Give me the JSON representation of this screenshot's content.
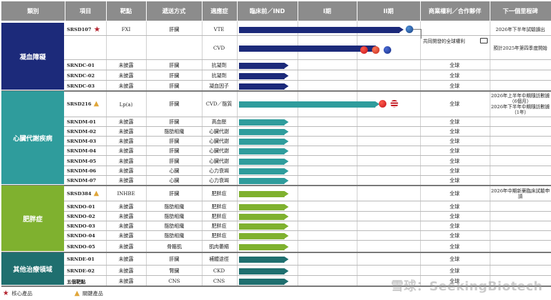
{
  "headers": [
    "類別",
    "項目",
    "靶點",
    "遞送方式",
    "適應症",
    "臨床前／IND",
    "I期",
    "II期",
    "商業權利／合作夥伴",
    "下一個里程碑"
  ],
  "categories": [
    {
      "name": "凝血障礙",
      "color": "#1c2a7a"
    },
    {
      "name": "心臟代謝疾病",
      "color": "#2f9c9c"
    },
    {
      "name": "肥胖症",
      "color": "#7fb12f"
    },
    {
      "name": "其他治療領域",
      "color": "#1f6f6f"
    }
  ],
  "rows": [
    {
      "project": "SRSD107",
      "badge": "star",
      "target": "FXI",
      "route": "肝臟",
      "indication": "VTE",
      "stage": "phase2",
      "color": "#1c2a7a",
      "comm": "",
      "milestone": "2026年下半年試驗讀出"
    },
    {
      "project": "",
      "badge": "",
      "target": "",
      "route": "",
      "indication": "CVD",
      "stage": "phase1_5",
      "color": "#1c2a7a",
      "comm": "",
      "milestone": "預計2025年第四季度開始"
    },
    {
      "project": "SRNDC-01",
      "badge": "",
      "target": "未披露",
      "route": "肝臟",
      "indication": "抗凝劑",
      "stage": "preclinical",
      "color": "#1c2a7a",
      "comm": "全球",
      "milestone": ""
    },
    {
      "project": "SRNDC-02",
      "badge": "",
      "target": "未披露",
      "route": "肝臟",
      "indication": "抗凝劑",
      "stage": "preclinical",
      "color": "#1c2a7a",
      "comm": "全球",
      "milestone": ""
    },
    {
      "project": "SRNDC-03",
      "badge": "",
      "target": "未披露",
      "route": "肝臟",
      "indication": "凝血因子",
      "stage": "preclinical",
      "color": "#1c2a7a",
      "comm": "全球",
      "milestone": ""
    },
    {
      "project": "SRSD216",
      "badge": "triangle",
      "target": "Lp(a)",
      "route": "肝臟",
      "indication": "CVD／脂質",
      "stage": "phase1_5",
      "color": "#2f9c9c",
      "comm": "全球",
      "milestone": "2026年上半年中期隨訪數據（6個月）\n2026年下半年中期隨訪數據（1年）"
    },
    {
      "project": "SRNDM-01",
      "badge": "",
      "target": "未披露",
      "route": "肝臟",
      "indication": "高血壓",
      "stage": "preclinical",
      "color": "#2f9c9c",
      "comm": "全球",
      "milestone": ""
    },
    {
      "project": "SRNDM-02",
      "badge": "",
      "target": "未披露",
      "route": "脂肪組織",
      "indication": "心臟代謝",
      "stage": "preclinical",
      "color": "#2f9c9c",
      "comm": "全球",
      "milestone": ""
    },
    {
      "project": "SRNDM-03",
      "badge": "",
      "target": "未披露",
      "route": "肝臟",
      "indication": "心臟代謝",
      "stage": "preclinical",
      "color": "#2f9c9c",
      "comm": "全球",
      "milestone": ""
    },
    {
      "project": "SRNDM-04",
      "badge": "",
      "target": "未披露",
      "route": "肝臟",
      "indication": "心臟代謝",
      "stage": "preclinical",
      "color": "#2f9c9c",
      "comm": "全球",
      "milestone": ""
    },
    {
      "project": "SRNDM-05",
      "badge": "",
      "target": "未披露",
      "route": "肝臟",
      "indication": "心臟代謝",
      "stage": "preclinical",
      "color": "#2f9c9c",
      "comm": "全球",
      "milestone": ""
    },
    {
      "project": "SRNDM-06",
      "badge": "",
      "target": "未披露",
      "route": "心臟",
      "indication": "心力衰竭",
      "stage": "preclinical",
      "color": "#2f9c9c",
      "comm": "全球",
      "milestone": ""
    },
    {
      "project": "SRNDM-07",
      "badge": "",
      "target": "未披露",
      "route": "心臟",
      "indication": "心力衰竭",
      "stage": "preclinical",
      "color": "#2f9c9c",
      "comm": "全球",
      "milestone": ""
    },
    {
      "project": "SRSD384",
      "badge": "triangle",
      "target": "INHBE",
      "route": "肝臟",
      "indication": "肥胖症",
      "stage": "preclinical",
      "color": "#7fb12f",
      "comm": "全球",
      "milestone": "2026年中期新藥臨床試驗申請"
    },
    {
      "project": "SRNDO-01",
      "badge": "",
      "target": "未披露",
      "route": "脂肪組織",
      "indication": "肥胖症",
      "stage": "preclinical",
      "color": "#7fb12f",
      "comm": "全球",
      "milestone": ""
    },
    {
      "project": "SRNDO-02",
      "badge": "",
      "target": "未披露",
      "route": "脂肪組織",
      "indication": "肥胖症",
      "stage": "preclinical",
      "color": "#7fb12f",
      "comm": "全球",
      "milestone": ""
    },
    {
      "project": "SRNDO-03",
      "badge": "",
      "target": "未披露",
      "route": "脂肪組織",
      "indication": "肥胖症",
      "stage": "preclinical",
      "color": "#7fb12f",
      "comm": "全球",
      "milestone": ""
    },
    {
      "project": "SRNDO-04",
      "badge": "",
      "target": "未披露",
      "route": "脂肪組織",
      "indication": "肥胖症",
      "stage": "preclinical",
      "color": "#7fb12f",
      "comm": "全球",
      "milestone": ""
    },
    {
      "project": "SRNDO-05",
      "badge": "",
      "target": "未披露",
      "route": "骨骼肌",
      "indication": "肌肉萎縮",
      "stage": "preclinical",
      "color": "#7fb12f",
      "comm": "全球",
      "milestone": ""
    },
    {
      "project": "SRNDE-01",
      "badge": "",
      "target": "未披露",
      "route": "肝臟",
      "indication": "補體途徑",
      "stage": "preclinical",
      "color": "#1f6f6f",
      "comm": "全球",
      "milestone": ""
    },
    {
      "project": "SRNDE-02",
      "badge": "",
      "target": "未披露",
      "route": "腎臟",
      "indication": "CKD",
      "stage": "preclinical",
      "color": "#1f6f6f",
      "comm": "全球",
      "milestone": ""
    },
    {
      "project": "五個靶點",
      "badge": "",
      "target": "未披露",
      "route": "CNS",
      "indication": "CNS",
      "stage": "preclinical",
      "color": "#1f6f6f",
      "comm": "全球",
      "milestone": ""
    }
  ],
  "partner_note": "共同開發的全球權利",
  "legend": {
    "core": "核心產品",
    "key": "關鍵產品"
  },
  "watermark": "雪球：SeekingBiotech"
}
